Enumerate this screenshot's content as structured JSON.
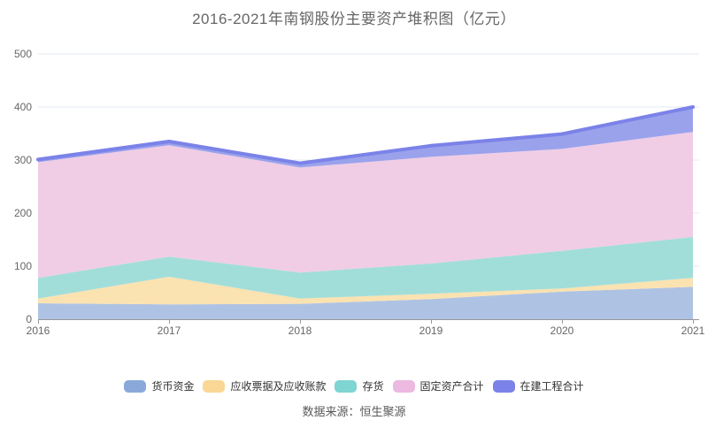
{
  "chart_data": {
    "type": "area",
    "stacked": true,
    "title": "2016-2021年南钢股份主要资产堆积图（亿元）",
    "x": [
      "2016",
      "2017",
      "2018",
      "2019",
      "2020",
      "2021"
    ],
    "xlabel": "",
    "ylabel": "",
    "ylim": [
      0,
      500
    ],
    "yticks": [
      0,
      100,
      200,
      300,
      400,
      500
    ],
    "grid": true,
    "legend_position": "bottom",
    "source": "数据来源：恒生聚源",
    "series": [
      {
        "name": "货币资金",
        "values": [
          30,
          28,
          29,
          38,
          52,
          61
        ],
        "color": "#8AA9DA",
        "area_color": "#AEC3E4",
        "line_width": 0
      },
      {
        "name": "应收票据及应收账款",
        "values": [
          9,
          52,
          10,
          10,
          6,
          17
        ],
        "color": "#FAD794",
        "area_color": "#FBE2B1",
        "line_width": 0
      },
      {
        "name": "存货",
        "values": [
          39,
          38,
          49,
          57,
          71,
          77
        ],
        "color": "#7ED5D1",
        "area_color": "#A2DED9",
        "line_width": 0
      },
      {
        "name": "固定资产合计",
        "values": [
          218,
          210,
          198,
          201,
          192,
          198
        ],
        "color": "#ECB9E0",
        "area_color": "#F0CDE5",
        "line_width": 0
      },
      {
        "name": "在建工程合计",
        "values": [
          5,
          7,
          8,
          21,
          28,
          47
        ],
        "color": "#7B82E8",
        "area_color": "#9AA2EC",
        "line_width": 4
      }
    ]
  },
  "theme": {
    "background": "#FFFFFF",
    "title_color": "#666666",
    "axis_text_color": "#666666",
    "legend_text_color": "#333333",
    "source_color": "#595959",
    "gridline_color": "#E3E8F2",
    "axis_line_color": "#999999"
  }
}
